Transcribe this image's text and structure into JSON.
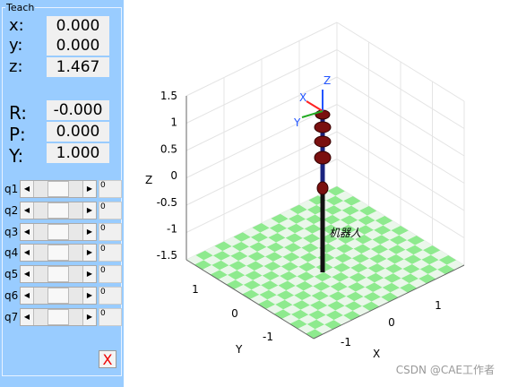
{
  "panel": {
    "title": "Teach",
    "position": [
      {
        "label": "x:",
        "value": "0.000"
      },
      {
        "label": "y:",
        "value": "0.000"
      },
      {
        "label": "z:",
        "value": "1.467"
      }
    ],
    "orientation": [
      {
        "label": "R:",
        "value": "-0.000"
      },
      {
        "label": "P:",
        "value": "0.000"
      },
      {
        "label": "Y:",
        "value": "1.000"
      }
    ],
    "joints": [
      {
        "label": "q1",
        "value": "0"
      },
      {
        "label": "q2",
        "value": "0"
      },
      {
        "label": "q3",
        "value": "0"
      },
      {
        "label": "q4",
        "value": "0"
      },
      {
        "label": "q5",
        "value": "0"
      },
      {
        "label": "q6",
        "value": "0"
      },
      {
        "label": "q7",
        "value": "0"
      }
    ],
    "close": "X"
  },
  "plot": {
    "xlabel": "X",
    "ylabel": "Y",
    "zlabel": "Z",
    "xticks": [
      -1,
      0,
      1
    ],
    "yticks": [
      1,
      0,
      -1
    ],
    "zticks": [
      1.5,
      1,
      0.5,
      0,
      -0.5,
      -1,
      -1.5
    ],
    "robot_name": "机器人",
    "frame_labels": [
      "Z",
      "X",
      "Y"
    ]
  },
  "watermark": "CSDN @CAE工作者"
}
